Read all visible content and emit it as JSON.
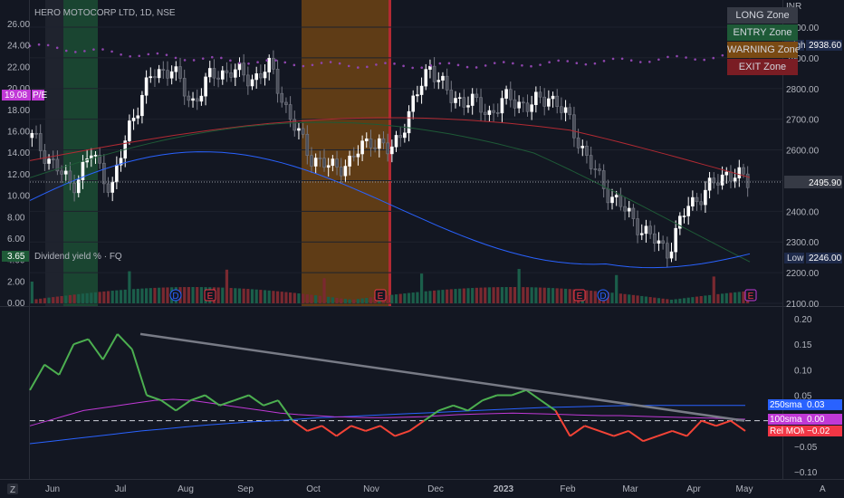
{
  "symbol_title": "HERO MOTOCORP LTD, 1D, NSE",
  "currency": "INR",
  "legend": [
    {
      "label": "LONG Zone",
      "color": "#363a45",
      "text": "#d1d4dc"
    },
    {
      "label": "ENTRY Zone",
      "color": "#1e5a37",
      "text": "#d1d4dc"
    },
    {
      "label": "WARNING Zone",
      "color": "#7a4a13",
      "text": "#d1d4dc"
    },
    {
      "label": "EXIT Zone",
      "color": "#7a1d24",
      "text": "#d1d4dc"
    }
  ],
  "price_badges": {
    "high_label": "High",
    "high_value": "2938.60",
    "last_value": "2495.90",
    "low_label": "Low",
    "low_value": "2246.00"
  },
  "left_badges": {
    "pe_value": "19.08",
    "pe_label": "P/E",
    "div_value": "3.65",
    "div_label": "Dividend yield % · FQ"
  },
  "indicator_badges": [
    {
      "name": "250sma",
      "value": "0.03",
      "color": "#2962ff"
    },
    {
      "name": "100sma",
      "value": "0.00",
      "color": "#c039d6"
    },
    {
      "name": "Rel MOM",
      "value": "−0.02",
      "color": "#f23645"
    }
  ],
  "event_markers": [
    {
      "label": "D",
      "type": "dividend"
    },
    {
      "label": "E",
      "type": "earnings"
    },
    {
      "label": "E",
      "type": "earnings"
    },
    {
      "label": "E",
      "type": "earnings"
    },
    {
      "label": "D",
      "type": "dividend"
    },
    {
      "label": "E",
      "type": "earnings"
    }
  ],
  "bottom_icon_left": "Z",
  "bottom_icon_right": "A",
  "chart_data": [
    {
      "type": "candlestick",
      "title": "HERO MOTOCORP LTD, 1D, NSE",
      "x_ticks": [
        "Jun",
        "Jul",
        "Aug",
        "Sep",
        "Oct",
        "Nov",
        "Dec",
        "2023",
        "Feb",
        "Mar",
        "Apr",
        "May"
      ],
      "right_axis_ticks": [
        3000,
        2900,
        2800,
        2700,
        2600,
        2500,
        2400,
        2300,
        2200,
        2100
      ],
      "left_axis_ticks": [
        "26.00",
        "24.00",
        "22.00",
        "20.00",
        "18.00",
        "16.00",
        "14.00",
        "12.00",
        "10.00",
        "8.00",
        "6.00",
        "4.00",
        "2.00",
        "0.00"
      ],
      "ylim": [
        2100,
        3030
      ],
      "close_path": [
        [
          "Jun",
          2640
        ],
        [
          "Jun",
          2560
        ],
        [
          "Jun",
          2480
        ],
        [
          "Jun",
          2590
        ],
        [
          "Jul",
          2470
        ],
        [
          "Jul",
          2700
        ],
        [
          "Jul",
          2840
        ],
        [
          "Aug",
          2870
        ],
        [
          "Aug",
          2750
        ],
        [
          "Aug",
          2840
        ],
        [
          "Sep",
          2860
        ],
        [
          "Sep",
          2830
        ],
        [
          "Sep",
          2870
        ],
        [
          "Sep",
          2700
        ],
        [
          "Oct",
          2580
        ],
        [
          "Oct",
          2540
        ],
        [
          "Oct",
          2560
        ],
        [
          "Nov",
          2640
        ],
        [
          "Nov",
          2590
        ],
        [
          "Nov",
          2720
        ],
        [
          "Dec",
          2880
        ],
        [
          "Dec",
          2770
        ],
        [
          "Dec",
          2760
        ],
        [
          "2023",
          2720
        ],
        [
          "2023",
          2770
        ],
        [
          "2023",
          2740
        ],
        [
          "Feb",
          2780
        ],
        [
          "Feb",
          2700
        ],
        [
          "Feb",
          2560
        ],
        [
          "Mar",
          2460
        ],
        [
          "Mar",
          2390
        ],
        [
          "Mar",
          2320
        ],
        [
          "Apr",
          2270
        ],
        [
          "Apr",
          2420
        ],
        [
          "Apr",
          2470
        ],
        [
          "May",
          2530
        ],
        [
          "May",
          2495
        ]
      ],
      "shaded_zones": [
        {
          "zone": "ENTRY Zone",
          "from": "Jun",
          "to": "Jun"
        },
        {
          "zone": "WARNING Zone",
          "from": "Oct",
          "to": "Nov"
        }
      ]
    },
    {
      "type": "line",
      "x_ticks": [
        "Jun",
        "Jul",
        "Aug",
        "Sep",
        "Oct",
        "Nov",
        "Dec",
        "2023",
        "Feb",
        "Mar",
        "Apr",
        "May"
      ],
      "right_axis_ticks": [
        "0.20",
        "0.15",
        "0.10",
        "0.05",
        "0.00",
        "−0.05",
        "−0.10"
      ],
      "ylim": [
        -0.11,
        0.21
      ],
      "series": [
        {
          "name": "Rel MOM",
          "color_pos": "#4caf50",
          "color_neg": "#f44336",
          "values": [
            0.06,
            0.11,
            0.09,
            0.15,
            0.16,
            0.12,
            0.17,
            0.14,
            0.05,
            0.04,
            0.02,
            0.04,
            0.05,
            0.03,
            0.04,
            0.05,
            0.03,
            0.04,
            0.0,
            -0.02,
            -0.01,
            -0.03,
            -0.01,
            -0.02,
            -0.01,
            -0.03,
            -0.02,
            0.0,
            0.02,
            0.03,
            0.02,
            0.04,
            0.05,
            0.05,
            0.06,
            0.04,
            0.02,
            -0.03,
            -0.01,
            -0.02,
            -0.03,
            -0.02,
            -0.04,
            -0.03,
            -0.02,
            -0.03,
            0.0,
            -0.01,
            0.0,
            -0.02
          ]
        },
        {
          "name": "100sma",
          "color": "#c039d6",
          "values": [
            -0.01,
            0.0,
            0.01,
            0.02,
            0.025,
            0.03,
            0.035,
            0.04,
            0.042,
            0.04,
            0.035,
            0.03,
            0.025,
            0.02,
            0.015,
            0.012,
            0.01,
            0.008,
            0.007,
            0.006,
            0.006,
            0.007,
            0.008,
            0.01,
            0.012,
            0.013,
            0.014,
            0.015,
            0.014,
            0.013,
            0.012,
            0.011,
            0.01,
            0.01,
            0.009,
            0.008,
            0.007,
            0.006,
            0.005,
            0.004,
            0.003
          ]
        },
        {
          "name": "250sma",
          "color": "#2962ff",
          "values": [
            -0.045,
            -0.04,
            -0.035,
            -0.03,
            -0.025,
            -0.02,
            -0.016,
            -0.012,
            -0.008,
            -0.005,
            -0.002,
            0.0,
            0.003,
            0.006,
            0.008,
            0.01,
            0.012,
            0.014,
            0.016,
            0.018,
            0.02,
            0.022,
            0.024,
            0.026,
            0.027,
            0.028,
            0.029,
            0.03,
            0.03,
            0.03,
            0.03,
            0.03,
            0.03
          ]
        }
      ],
      "trendline": {
        "from": 0.17,
        "to": 0.0,
        "color": "#787b86"
      },
      "zero_line": true
    }
  ]
}
